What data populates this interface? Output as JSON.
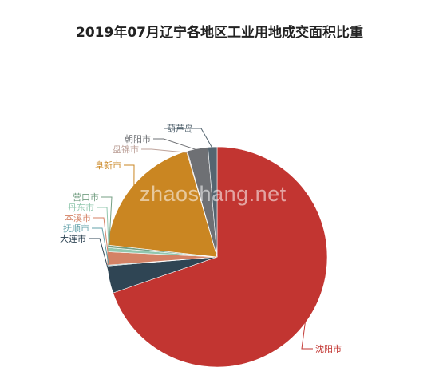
{
  "chart_data": {
    "type": "pie",
    "title": "2019年07月辽宁各地区工业用地成交面积比重",
    "slices": [
      {
        "name": "沈阳市",
        "value": 57.5,
        "color": "#c23531"
      },
      {
        "name": "大连市",
        "value": 3.3,
        "color": "#2f4554"
      },
      {
        "name": "抚顺市",
        "value": 0.1,
        "color": "#61a0a8"
      },
      {
        "name": "本溪市",
        "value": 1.6,
        "color": "#d48265"
      },
      {
        "name": "丹东市",
        "value": 0.5,
        "color": "#91c7ae"
      },
      {
        "name": "营口市",
        "value": 0.3,
        "color": "#749f83"
      },
      {
        "name": "阜新市",
        "value": 15.5,
        "color": "#ca8622"
      },
      {
        "name": "盘锦市",
        "value": 0.1,
        "color": "#bda29a"
      },
      {
        "name": "朝阳市",
        "value": 2.5,
        "color": "#6e7074"
      },
      {
        "name": "葫芦岛",
        "value": 1.1,
        "color": "#546570"
      }
    ]
  },
  "watermark": "zhaoshang.net"
}
